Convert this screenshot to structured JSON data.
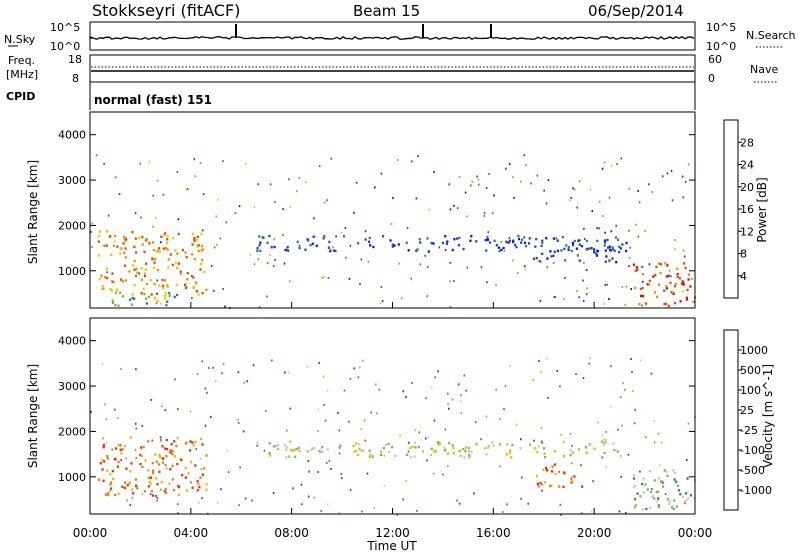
{
  "header": {
    "station": "Stokkseyri (fitACF)",
    "beam": "Beam 15",
    "date": "06/Sep/2014"
  },
  "params": {
    "nsky_label": "N.Sky",
    "nsearch_label": "N.Search",
    "freq_label_top": "Freq.",
    "freq_label_unit": "[MHz]",
    "nave_label": "Nave",
    "cpid_label": "CPID",
    "cpid_text": "normal (fast) 151",
    "noise_ticks_left": [
      "10^5",
      "10^0"
    ],
    "noise_ticks_right": [
      "10^5",
      "10^0"
    ],
    "freq_ticks": [
      "18",
      "8"
    ],
    "nave_ticks": [
      "60",
      "0"
    ]
  },
  "chart_data": [
    {
      "type": "heatmap",
      "panel": "power",
      "ylabel": "Slant Range [km]",
      "y_ticks": [
        "1000",
        "2000",
        "3000",
        "4000"
      ],
      "ylim": [
        180,
        4500
      ],
      "xlim": [
        0,
        24
      ],
      "colorbar": {
        "label": "Power [dB]",
        "ticks": [
          "4",
          "8",
          "12",
          "16",
          "20",
          "24",
          "28"
        ],
        "colors": [
          "#0a18e6",
          "#1e4fb0",
          "#2f7f63",
          "#6dbb3d",
          "#f2c200",
          "#f08a00",
          "#e84800",
          "#d41010"
        ]
      },
      "regions": [
        {
          "x": [
            0.3,
            4.6
          ],
          "y": [
            500,
            1900
          ],
          "level": 5
        },
        {
          "x": [
            0.5,
            3.5
          ],
          "y": [
            250,
            600
          ],
          "level": 3
        },
        {
          "x": [
            6.5,
            21.3
          ],
          "y": [
            1450,
            1800
          ],
          "level": 1
        },
        {
          "x": [
            17.5,
            21.0
          ],
          "y": [
            1200,
            1600
          ],
          "level": 1
        },
        {
          "x": [
            21.5,
            24.0
          ],
          "y": [
            250,
            1200
          ],
          "level": 6
        }
      ]
    },
    {
      "type": "heatmap",
      "panel": "velocity",
      "ylabel": "Slant Range [km]",
      "y_ticks": [
        "1000",
        "2000",
        "3000",
        "4000"
      ],
      "ylim": [
        180,
        4500
      ],
      "xlim": [
        0,
        24
      ],
      "xlabel": "Time UT",
      "x_ticks": [
        "00:00",
        "04:00",
        "08:00",
        "12:00",
        "16:00",
        "20:00",
        "00:00"
      ],
      "colorbar": {
        "label": "Velocity [m s^-1]",
        "ticks": [
          "1000",
          "500",
          "100",
          "25",
          "-25",
          "-100",
          "-500",
          "-1000"
        ],
        "colors": [
          "#1a3ccc",
          "#2e7bb4",
          "#2f8a5a",
          "#6cc24a",
          "#c8c8c8",
          "#f5b010",
          "#f07818",
          "#e83010",
          "#e01010"
        ]
      },
      "regions": [
        {
          "x": [
            0.3,
            4.6
          ],
          "y": [
            600,
            1900
          ],
          "level": 6
        },
        {
          "x": [
            6.5,
            21.3
          ],
          "y": [
            1450,
            1800
          ],
          "level": 4
        },
        {
          "x": [
            17.5,
            19.5
          ],
          "y": [
            800,
            1300
          ],
          "level": 6
        },
        {
          "x": [
            21.5,
            24.0
          ],
          "y": [
            300,
            1200
          ],
          "level": 3
        }
      ]
    }
  ]
}
